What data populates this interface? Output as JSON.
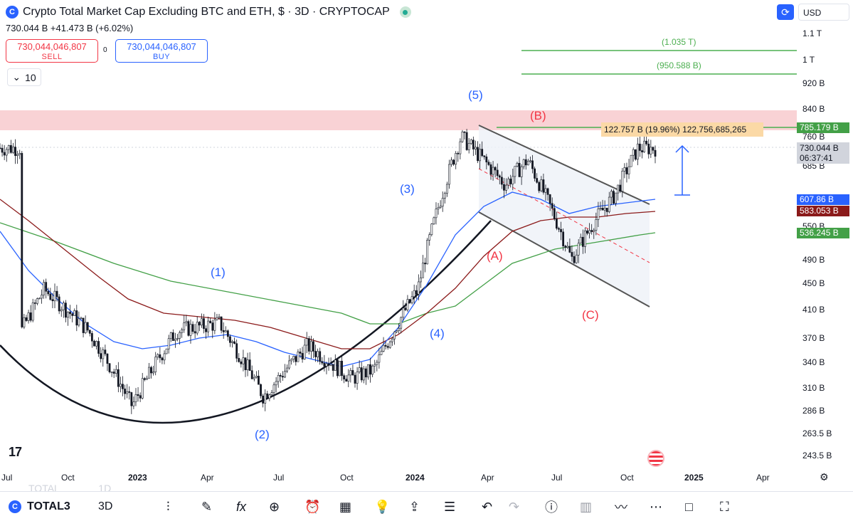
{
  "header": {
    "logo_letter": "C",
    "title": "Crypto Total Market Cap Excluding BTC and ETH, $ · 3D · CRYPTOCAP",
    "price_line": "730.044 B  +41.473 B (+6.02%)"
  },
  "trade": {
    "sell_value": "730,044,046,807",
    "sell_label": "SELL",
    "spread": "0",
    "buy_value": "730,044,046,807",
    "buy_label": "BUY"
  },
  "interval_button": {
    "icon": "chevron-down-icon",
    "value": "10"
  },
  "currency": "USD",
  "y_axis": [
    "1.1 T",
    "1 T",
    "920 B",
    "840 B",
    "760 B",
    "685 B",
    "550 B",
    "490 B",
    "450 B",
    "410 B",
    "370 B",
    "340 B",
    "310 B",
    "286 B",
    "263.5 B",
    "243.5 B"
  ],
  "price_tags": {
    "target": "785.179 B",
    "current": "730.044 B",
    "countdown": "06:37:41",
    "ma_blue": "607.86 B",
    "ma_red": "583.053 B",
    "ma_green": "536.245 B"
  },
  "x_axis": {
    "jul_2022": "Jul",
    "oct_2022": "Oct",
    "y2023": "2023",
    "apr_2023": "Apr",
    "jul_2023": "Jul",
    "oct_2023": "Oct",
    "y2024": "2024",
    "apr_2024": "Apr",
    "jul_2024": "Jul",
    "oct_2024": "Oct",
    "y2025": "2025",
    "apr_2025": "Apr"
  },
  "waves": {
    "w1": "(1)",
    "w2": "(2)",
    "w3": "(3)",
    "w4": "(4)",
    "w5": "(5)",
    "wa": "(A)",
    "wb": "(B)",
    "wc": "(C)"
  },
  "fib": {
    "upper": "(1.035 T)",
    "lower": "(950.588 B)"
  },
  "measure": "122.757 B (19.96%) 122,756,685,265",
  "toolbar": {
    "symbol": "TOTAL3",
    "interval": "3D",
    "ghost_symbol": "TOTAL",
    "ghost_interval": "1D"
  },
  "colors": {
    "accent": "#2962ff",
    "down": "#f23645",
    "up": "#22ab94",
    "ma_blue": "#2962ff",
    "ma_red": "#880e0e",
    "ma_green": "#43a047",
    "fib": "#4caf50"
  },
  "chart_data": {
    "type": "candlestick",
    "y_scale": "log",
    "y_range_B": [
      230,
      1150
    ],
    "series": [
      {
        "name": "MA fast",
        "points_B": [
          [
            "2022-07",
            400
          ],
          [
            "2022-10",
            355
          ],
          [
            "2023-01",
            330
          ],
          [
            "2023-04",
            345
          ],
          [
            "2023-07",
            335
          ],
          [
            "2023-10",
            310
          ],
          [
            "2024-01",
            380
          ],
          [
            "2024-04",
            640
          ],
          [
            "2024-07",
            585
          ],
          [
            "2024-10",
            600
          ],
          [
            "2024-11",
            608
          ]
        ]
      },
      {
        "name": "MA mid",
        "points_B": [
          [
            "2022-07",
            540
          ],
          [
            "2022-10",
            460
          ],
          [
            "2023-01",
            410
          ],
          [
            "2023-04",
            400
          ],
          [
            "2023-07",
            370
          ],
          [
            "2023-10",
            340
          ],
          [
            "2024-01",
            360
          ],
          [
            "2024-04",
            470
          ],
          [
            "2024-07",
            555
          ],
          [
            "2024-10",
            575
          ],
          [
            "2024-11",
            583
          ]
        ]
      },
      {
        "name": "MA slow",
        "points_B": [
          [
            "2022-07",
            580
          ],
          [
            "2022-10",
            520
          ],
          [
            "2023-01",
            480
          ],
          [
            "2023-04",
            450
          ],
          [
            "2023-07",
            430
          ],
          [
            "2023-10",
            410
          ],
          [
            "2024-01",
            400
          ],
          [
            "2024-04",
            430
          ],
          [
            "2024-07",
            490
          ],
          [
            "2024-10",
            520
          ],
          [
            "2024-11",
            536
          ]
        ]
      }
    ],
    "close_B": [
      [
        "2022-07",
        380
      ],
      [
        "2022-08",
        440
      ],
      [
        "2022-10",
        380
      ],
      [
        "2022-12",
        290
      ],
      [
        "2023-02",
        380
      ],
      [
        "2023-04",
        390
      ],
      [
        "2023-06",
        300
      ],
      [
        "2023-08",
        360
      ],
      [
        "2023-10",
        320
      ],
      [
        "2023-11",
        330
      ],
      [
        "2024-01",
        440
      ],
      [
        "2024-03",
        760
      ],
      [
        "2024-05",
        640
      ],
      [
        "2024-06",
        700
      ],
      [
        "2024-08",
        490
      ],
      [
        "2024-09",
        560
      ],
      [
        "2024-10",
        620
      ],
      [
        "2024-11",
        730
      ]
    ]
  }
}
